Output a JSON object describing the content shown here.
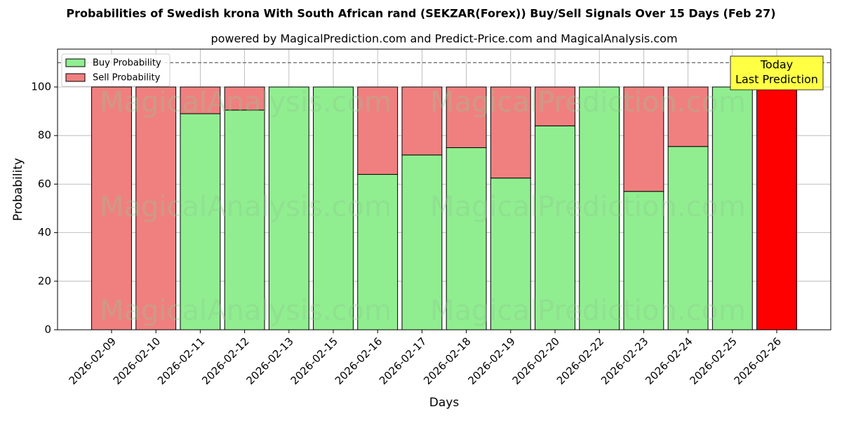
{
  "chart_data": {
    "type": "stacked_bar",
    "title": "Probabilities of Swedish krona With South African rand (SEKZAR(Forex)) Buy/Sell Signals Over 15 Days (Feb 27)",
    "subtitle": "powered by MagicalPrediction.com and Predict-Price.com and MagicalAnalysis.com",
    "xlabel": "Days",
    "ylabel": "Probability",
    "categories": [
      "2026-02-09",
      "2026-02-10",
      "2026-02-11",
      "2026-02-12",
      "2026-02-13",
      "2026-02-15",
      "2026-02-16",
      "2026-02-17",
      "2026-02-18",
      "2026-02-19",
      "2026-02-20",
      "2026-02-22",
      "2026-02-23",
      "2026-02-24",
      "2026-02-25",
      "2026-02-26"
    ],
    "series": [
      {
        "name": "Buy Probability",
        "color": "#90ee90",
        "values": [
          0,
          0,
          89,
          90.5,
          100,
          100,
          64,
          72,
          75,
          62.5,
          84,
          100,
          57,
          75.5,
          100,
          0
        ]
      },
      {
        "name": "Sell Probability",
        "color": "#f08080",
        "last_color": "#ff0000",
        "values": [
          100,
          100,
          11,
          9.5,
          0,
          0,
          36,
          28,
          25,
          37.5,
          16,
          0,
          43,
          24.5,
          0,
          100
        ]
      }
    ],
    "ylim": [
      0,
      115.6
    ],
    "yticks": [
      0,
      20,
      40,
      60,
      80,
      100
    ],
    "grid": true,
    "legend": "upper left",
    "hline": 110,
    "annotation": [
      "Today",
      "Last Prediction"
    ],
    "watermarks": [
      "MagicalAnalysis.com",
      "MagicalPrediction.com"
    ]
  }
}
